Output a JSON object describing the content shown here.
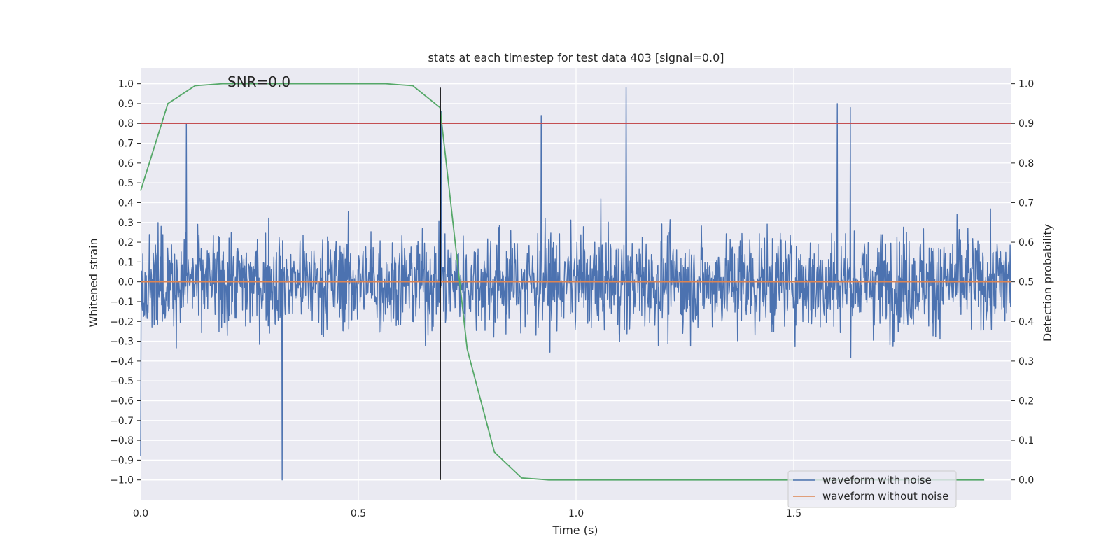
{
  "chart_data": {
    "type": "line",
    "title": "stats at each timestep for test data 403 [signal=0.0]",
    "annotation": "SNR=0.0",
    "xlabel": "Time (s)",
    "ylabel_left": "Whitened strain",
    "ylabel_right": "Detection probability",
    "xlim": [
      0.0,
      2.0
    ],
    "ylim_left": [
      -1.1,
      1.08
    ],
    "ylim_right": [
      -0.05,
      1.04
    ],
    "x_ticks": [
      0.0,
      0.5,
      1.0,
      1.5
    ],
    "x_tick_labels": [
      "0.0",
      "0.5",
      "1.0",
      "1.5"
    ],
    "y_left_ticks": [
      1.0,
      0.9,
      0.8,
      0.7,
      0.6,
      0.5,
      0.4,
      0.3,
      0.2,
      0.1,
      0.0,
      -0.1,
      -0.2,
      -0.3,
      -0.4,
      -0.5,
      -0.6,
      -0.7,
      -0.8,
      -0.9,
      -1.0
    ],
    "y_left_tick_labels": [
      "1.0",
      "0.9",
      "0.8",
      "0.7",
      "0.6",
      "0.5",
      "0.4",
      "0.3",
      "0.2",
      "0.1",
      "0.0",
      "−0.1",
      "−0.2",
      "−0.3",
      "−0.4",
      "−0.5",
      "−0.6",
      "−0.7",
      "−0.8",
      "−0.9",
      "−1.0"
    ],
    "y_right_ticks": [
      0.0,
      0.1,
      0.2,
      0.3,
      0.4,
      0.5,
      0.6,
      0.7,
      0.8,
      0.9,
      1.0
    ],
    "y_right_tick_labels": [
      "0.0",
      "0.1",
      "0.2",
      "0.3",
      "0.4",
      "0.5",
      "0.6",
      "0.7",
      "0.8",
      "0.9",
      "1.0"
    ],
    "grid": true,
    "legend": {
      "position": "bottom-right",
      "entries": [
        {
          "label": "waveform with noise",
          "color": "#4c72b0"
        },
        {
          "label": "waveform without noise",
          "color": "#dd8452"
        }
      ]
    },
    "series": [
      {
        "name": "waveform with noise",
        "axis": "left",
        "color": "#4c72b0",
        "generated": true,
        "n_points": 2000,
        "x_range": [
          0.0,
          1.999
        ],
        "amplitude_range": [
          -1.0,
          0.98
        ],
        "peaks": [
          {
            "x": 0.0,
            "y": -0.88
          },
          {
            "x": 0.105,
            "y": 0.8
          },
          {
            "x": 0.325,
            "y": -1.0
          },
          {
            "x": 0.69,
            "y": 0.86
          },
          {
            "x": 0.92,
            "y": 0.84
          },
          {
            "x": 1.115,
            "y": 0.98
          },
          {
            "x": 1.6,
            "y": 0.9
          },
          {
            "x": 1.63,
            "y": 0.88
          }
        ]
      },
      {
        "name": "waveform without noise",
        "axis": "left",
        "color": "#dd8452",
        "x": [
          0.0,
          2.0
        ],
        "y": [
          0.0,
          0.0
        ]
      },
      {
        "name": "detection probability",
        "axis": "right",
        "color": "#55a868",
        "x": [
          0.0,
          0.0625,
          0.125,
          0.1875,
          0.25,
          0.3125,
          0.375,
          0.4375,
          0.5,
          0.5625,
          0.625,
          0.6875,
          0.75,
          0.8125,
          0.875,
          0.9375,
          1.0,
          1.0625,
          1.125,
          1.1875,
          1.25,
          1.3125,
          1.375,
          1.4375,
          1.5,
          1.5625,
          1.625,
          1.6875,
          1.75,
          1.8125,
          1.875,
          1.9375
        ],
        "y": [
          0.73,
          0.95,
          0.995,
          1.0,
          1.0,
          1.0,
          1.0,
          1.0,
          1.0,
          1.0,
          0.995,
          0.94,
          0.33,
          0.07,
          0.005,
          0.0,
          0.0,
          0.0,
          0.0,
          0.0,
          0.0,
          0.0,
          0.0,
          0.0,
          0.0,
          0.0,
          0.0,
          0.0,
          0.0,
          0.0,
          0.0,
          0.0
        ]
      }
    ],
    "threshold_line": {
      "axis": "right",
      "y": 0.9,
      "color": "#c44e52"
    },
    "vertical_marker": {
      "x": 0.688,
      "y_from": -1.0,
      "y_to": 0.98,
      "color": "#000000"
    }
  }
}
